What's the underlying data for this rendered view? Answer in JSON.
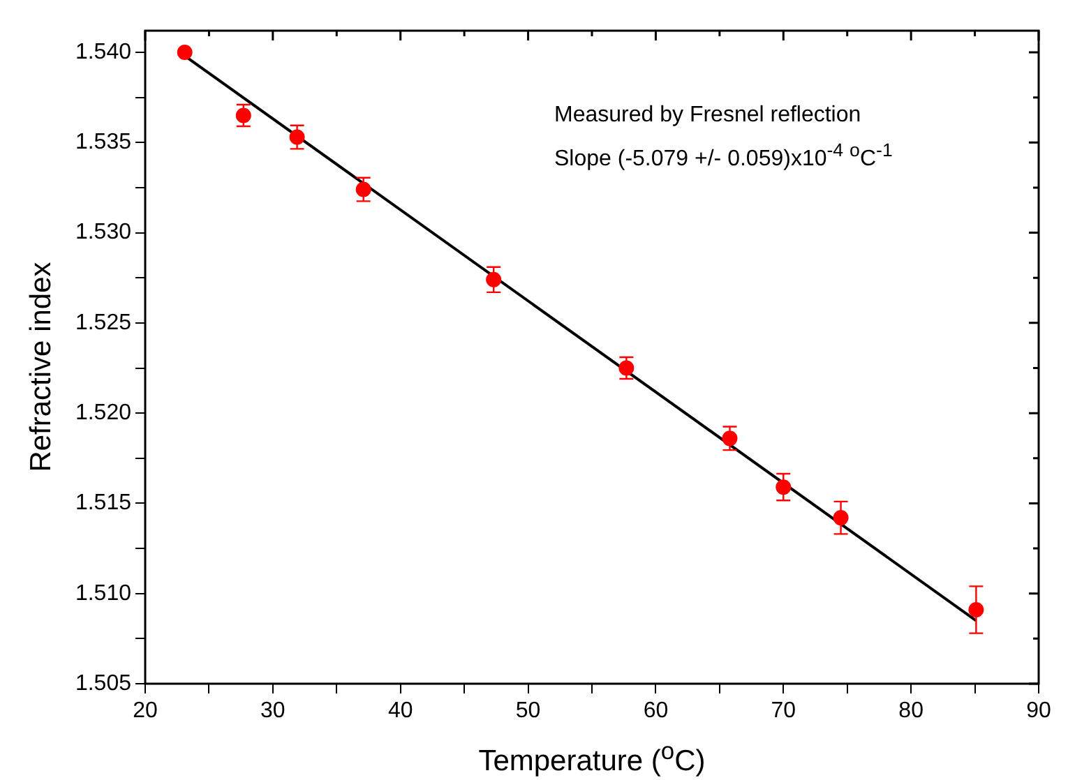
{
  "chart_data": {
    "type": "scatter",
    "xlabel": "Temperature ($^{o}$C)",
    "ylabel": "Refractive index",
    "annotations": [
      "Measured by Fresnel reflection",
      "Slope (-5.079 +/- 0.059)x10$^{-4}$ $^{o}$C$^{-1}$"
    ],
    "xlim": [
      20,
      90
    ],
    "xticks": [
      20,
      {
        "value": 25,
        "label": null
      },
      30,
      {
        "value": 35,
        "label": null
      },
      40,
      {
        "value": 45,
        "label": null
      },
      50,
      {
        "value": 55,
        "label": null
      },
      60,
      {
        "value": 65,
        "label": null
      },
      70,
      {
        "value": 75,
        "label": null
      },
      80,
      {
        "value": 85,
        "label": null
      },
      90
    ],
    "ylim": [
      1.505,
      1.5412
    ],
    "yticks": [
      1.505,
      {
        "value": 1.5075,
        "label": null
      },
      {
        "value": 1.51,
        "label": "1.510"
      },
      {
        "value": 1.5125,
        "label": null
      },
      1.515,
      {
        "value": 1.5175,
        "label": null
      },
      {
        "value": 1.52,
        "label": "1.520"
      },
      {
        "value": 1.5225,
        "label": null
      },
      1.525,
      {
        "value": 1.5275,
        "label": null
      },
      {
        "value": 1.53,
        "label": "1.530"
      },
      {
        "value": 1.5325,
        "label": null
      },
      1.535,
      {
        "value": 1.5375,
        "label": null
      },
      {
        "value": 1.54,
        "label": "1.540"
      }
    ],
    "grid": false,
    "legend": false,
    "series": [
      {
        "marker": "circle",
        "color": "#ff0000",
        "x": [
          23.1,
          27.7,
          31.9,
          37.1,
          47.3,
          57.7,
          65.8,
          70.0,
          74.5,
          85.1
        ],
        "values": [
          1.54,
          1.5365,
          1.5353,
          1.5324,
          1.5274,
          1.5225,
          1.5186,
          1.5159,
          1.5142,
          1.5091
        ],
        "errors": [
          0.0001,
          0.0006,
          0.00065,
          0.00065,
          0.0007,
          0.0006,
          0.00065,
          0.00074,
          0.0009,
          0.0013
        ]
      },
      {
        "type": "line",
        "marker": "none",
        "color": "#000000",
        "x": [
          23.1,
          85.1
        ],
        "values": [
          1.5398,
          1.5085
        ]
      }
    ]
  }
}
